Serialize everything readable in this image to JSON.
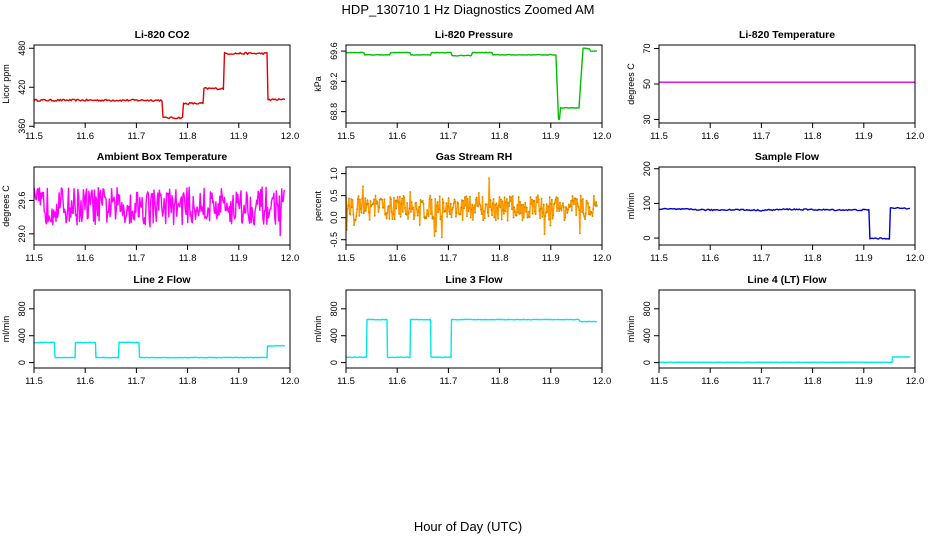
{
  "figure": {
    "title": "HDP_130710  1 Hz Diagnostics Zoomed AM",
    "xlabel": "Hour of Day (UTC)"
  },
  "chart_data": [
    {
      "type": "line",
      "title": "Li-820 CO2",
      "ylabel": "Licor ppm",
      "color": "#e00000",
      "xlim": [
        11.5,
        12.0
      ],
      "ylim": [
        365,
        485
      ],
      "xticks": [
        "11.5",
        "11.6",
        "11.7",
        "11.8",
        "11.9",
        "12.0"
      ],
      "yticks": [
        360,
        420,
        480
      ],
      "noise": 1.5,
      "series": [
        {
          "points": [
            [
              11.5,
              400
            ],
            [
              11.75,
              400
            ],
            [
              11.752,
              373
            ],
            [
              11.79,
              373
            ],
            [
              11.792,
              395
            ],
            [
              11.83,
              395
            ],
            [
              11.832,
              418
            ],
            [
              11.87,
              418
            ],
            [
              11.872,
              472
            ],
            [
              11.955,
              472
            ],
            [
              11.957,
              401
            ],
            [
              11.99,
              401
            ]
          ]
        }
      ]
    },
    {
      "type": "line",
      "title": "Li-820 Pressure",
      "ylabel": "kPa",
      "color": "#00c000",
      "xlim": [
        11.5,
        12.0
      ],
      "ylim": [
        68.65,
        69.68
      ],
      "xticks": [
        "11.5",
        "11.6",
        "11.7",
        "11.8",
        "11.9",
        "12.0"
      ],
      "yticks": [
        68.8,
        69.2,
        69.6
      ],
      "noise": 0.004,
      "series": [
        {
          "points": [
            [
              11.5,
              69.58
            ],
            [
              11.535,
              69.58
            ],
            [
              11.537,
              69.55
            ],
            [
              11.585,
              69.55
            ],
            [
              11.587,
              69.58
            ],
            [
              11.625,
              69.58
            ],
            [
              11.627,
              69.55
            ],
            [
              11.665,
              69.55
            ],
            [
              11.667,
              69.58
            ],
            [
              11.705,
              69.58
            ],
            [
              11.707,
              69.54
            ],
            [
              11.745,
              69.54
            ],
            [
              11.747,
              69.58
            ],
            [
              11.785,
              69.58
            ],
            [
              11.787,
              69.55
            ],
            [
              11.91,
              69.55
            ],
            [
              11.915,
              68.7
            ],
            [
              11.917,
              68.7
            ],
            [
              11.919,
              68.85
            ],
            [
              11.955,
              68.85
            ],
            [
              11.963,
              69.64
            ],
            [
              11.975,
              69.63
            ],
            [
              11.978,
              69.6
            ],
            [
              11.99,
              69.6
            ]
          ]
        }
      ]
    },
    {
      "type": "line",
      "title": "Li-820 Temperature",
      "ylabel": "degrees C",
      "color": "#e000e0",
      "xlim": [
        11.5,
        12.0
      ],
      "ylim": [
        28,
        72
      ],
      "xticks": [
        "11.5",
        "11.6",
        "11.7",
        "11.8",
        "11.9",
        "12.0"
      ],
      "yticks": [
        30,
        50,
        70
      ],
      "noise": 0,
      "series": [
        {
          "points": [
            [
              11.5,
              51
            ],
            [
              12.0,
              51
            ]
          ]
        }
      ]
    },
    {
      "type": "line",
      "title": "Ambient Box Temperature",
      "ylabel": "degrees C",
      "color": "#ff00ff",
      "xlim": [
        11.5,
        12.0
      ],
      "ylim": [
        28.8,
        30.2
      ],
      "xticks": [
        "11.5",
        "11.6",
        "11.7",
        "11.8",
        "11.9",
        "12.0"
      ],
      "yticks": [
        29.0,
        29.6
      ],
      "series": [
        {
          "jitter": {
            "x0": 11.5,
            "x1": 11.99,
            "n": 320,
            "base": 29.5,
            "amp": 0.34,
            "max_amp": 0.55
          }
        }
      ]
    },
    {
      "type": "line",
      "title": "Gas Stream RH",
      "ylabel": "percent",
      "color": "#ff9900",
      "xlim": [
        11.5,
        12.0
      ],
      "ylim": [
        -0.62,
        1.15
      ],
      "xticks": [
        "11.5",
        "11.6",
        "11.7",
        "11.8",
        "11.9",
        "12.0"
      ],
      "yticks": [
        -0.5,
        0.0,
        0.5,
        1.0
      ],
      "series": [
        {
          "jitter": {
            "x0": 11.5,
            "x1": 11.99,
            "n": 340,
            "base": 0.22,
            "amp": 0.28,
            "max_amp": 0.7,
            "points": true
          }
        }
      ]
    },
    {
      "type": "line",
      "title": "Sample Flow",
      "ylabel": "ml/min",
      "color": "#0000cc",
      "xlim": [
        11.5,
        12.0
      ],
      "ylim": [
        -20,
        205
      ],
      "xticks": [
        "11.5",
        "11.6",
        "11.7",
        "11.8",
        "11.9",
        "12.0"
      ],
      "yticks": [
        0,
        100,
        200
      ],
      "noise": 2,
      "series": [
        {
          "points": [
            [
              11.5,
              84
            ],
            [
              11.55,
              83
            ],
            [
              11.6,
              81
            ],
            [
              11.65,
              82
            ],
            [
              11.7,
              80
            ],
            [
              11.75,
              83
            ],
            [
              11.8,
              82
            ],
            [
              11.85,
              81
            ],
            [
              11.91,
              81
            ],
            [
              11.912,
              -1
            ],
            [
              11.95,
              -1
            ],
            [
              11.952,
              86
            ],
            [
              11.99,
              86
            ]
          ]
        }
      ]
    },
    {
      "type": "line",
      "title": "Line 2 Flow",
      "ylabel": "ml/min",
      "color": "#00e5ee",
      "xlim": [
        11.5,
        12.0
      ],
      "ylim": [
        -80,
        1080
      ],
      "xticks": [
        "11.5",
        "11.6",
        "11.7",
        "11.8",
        "11.9",
        "12.0"
      ],
      "yticks": [
        0,
        400,
        800
      ],
      "noise": 4,
      "series": [
        {
          "points": [
            [
              11.5,
              300
            ],
            [
              11.54,
              300
            ],
            [
              11.541,
              75
            ],
            [
              11.58,
              75
            ],
            [
              11.581,
              300
            ],
            [
              11.62,
              300
            ],
            [
              11.621,
              75
            ],
            [
              11.665,
              75
            ],
            [
              11.666,
              300
            ],
            [
              11.705,
              300
            ],
            [
              11.706,
              75
            ],
            [
              11.955,
              75
            ],
            [
              11.956,
              250
            ],
            [
              11.99,
              250
            ]
          ]
        }
      ]
    },
    {
      "type": "line",
      "title": "Line 3 Flow",
      "ylabel": "ml/min",
      "color": "#00e5ee",
      "xlim": [
        11.5,
        12.0
      ],
      "ylim": [
        -80,
        1080
      ],
      "xticks": [
        "11.5",
        "11.6",
        "11.7",
        "11.8",
        "11.9",
        "12.0"
      ],
      "yticks": [
        0,
        400,
        800
      ],
      "noise": 4,
      "series": [
        {
          "points": [
            [
              11.5,
              80
            ],
            [
              11.54,
              80
            ],
            [
              11.541,
              640
            ],
            [
              11.58,
              640
            ],
            [
              11.581,
              80
            ],
            [
              11.625,
              80
            ],
            [
              11.626,
              640
            ],
            [
              11.665,
              640
            ],
            [
              11.666,
              80
            ],
            [
              11.705,
              80
            ],
            [
              11.706,
              640
            ],
            [
              11.955,
              640
            ],
            [
              11.957,
              610
            ],
            [
              11.99,
              610
            ]
          ]
        }
      ]
    },
    {
      "type": "line",
      "title": "Line 4 (LT) Flow",
      "ylabel": "ml/min",
      "color": "#00e5ee",
      "xlim": [
        11.5,
        12.0
      ],
      "ylim": [
        -80,
        1080
      ],
      "xticks": [
        "11.5",
        "11.6",
        "11.7",
        "11.8",
        "11.9",
        "12.0"
      ],
      "yticks": [
        0,
        400,
        800
      ],
      "noise": 2,
      "series": [
        {
          "points": [
            [
              11.5,
              5
            ],
            [
              11.955,
              5
            ],
            [
              11.956,
              85
            ],
            [
              11.99,
              85
            ]
          ]
        }
      ]
    }
  ]
}
